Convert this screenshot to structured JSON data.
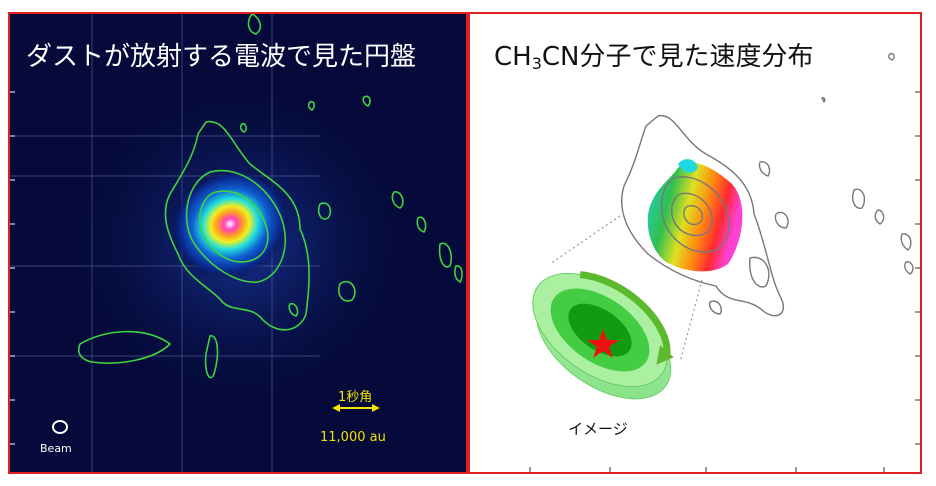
{
  "left_panel": {
    "title": "ダストが放射する電波で見た円盤",
    "beam_label": "Beam",
    "scale_label": "1秒角",
    "scale_value": "11,000 au"
  },
  "right_panel": {
    "title_prefix": "CH",
    "title_sub": "3",
    "title_rest": "CN分子で見た速度分布",
    "image_label": "イメージ"
  },
  "colors": {
    "frame": "#e02020",
    "left_background": "#050a3a",
    "contour_green": "#3fd43f",
    "contour_gray": "#777777",
    "scale_yellow": "#f2e200",
    "star": "#ee1111"
  }
}
